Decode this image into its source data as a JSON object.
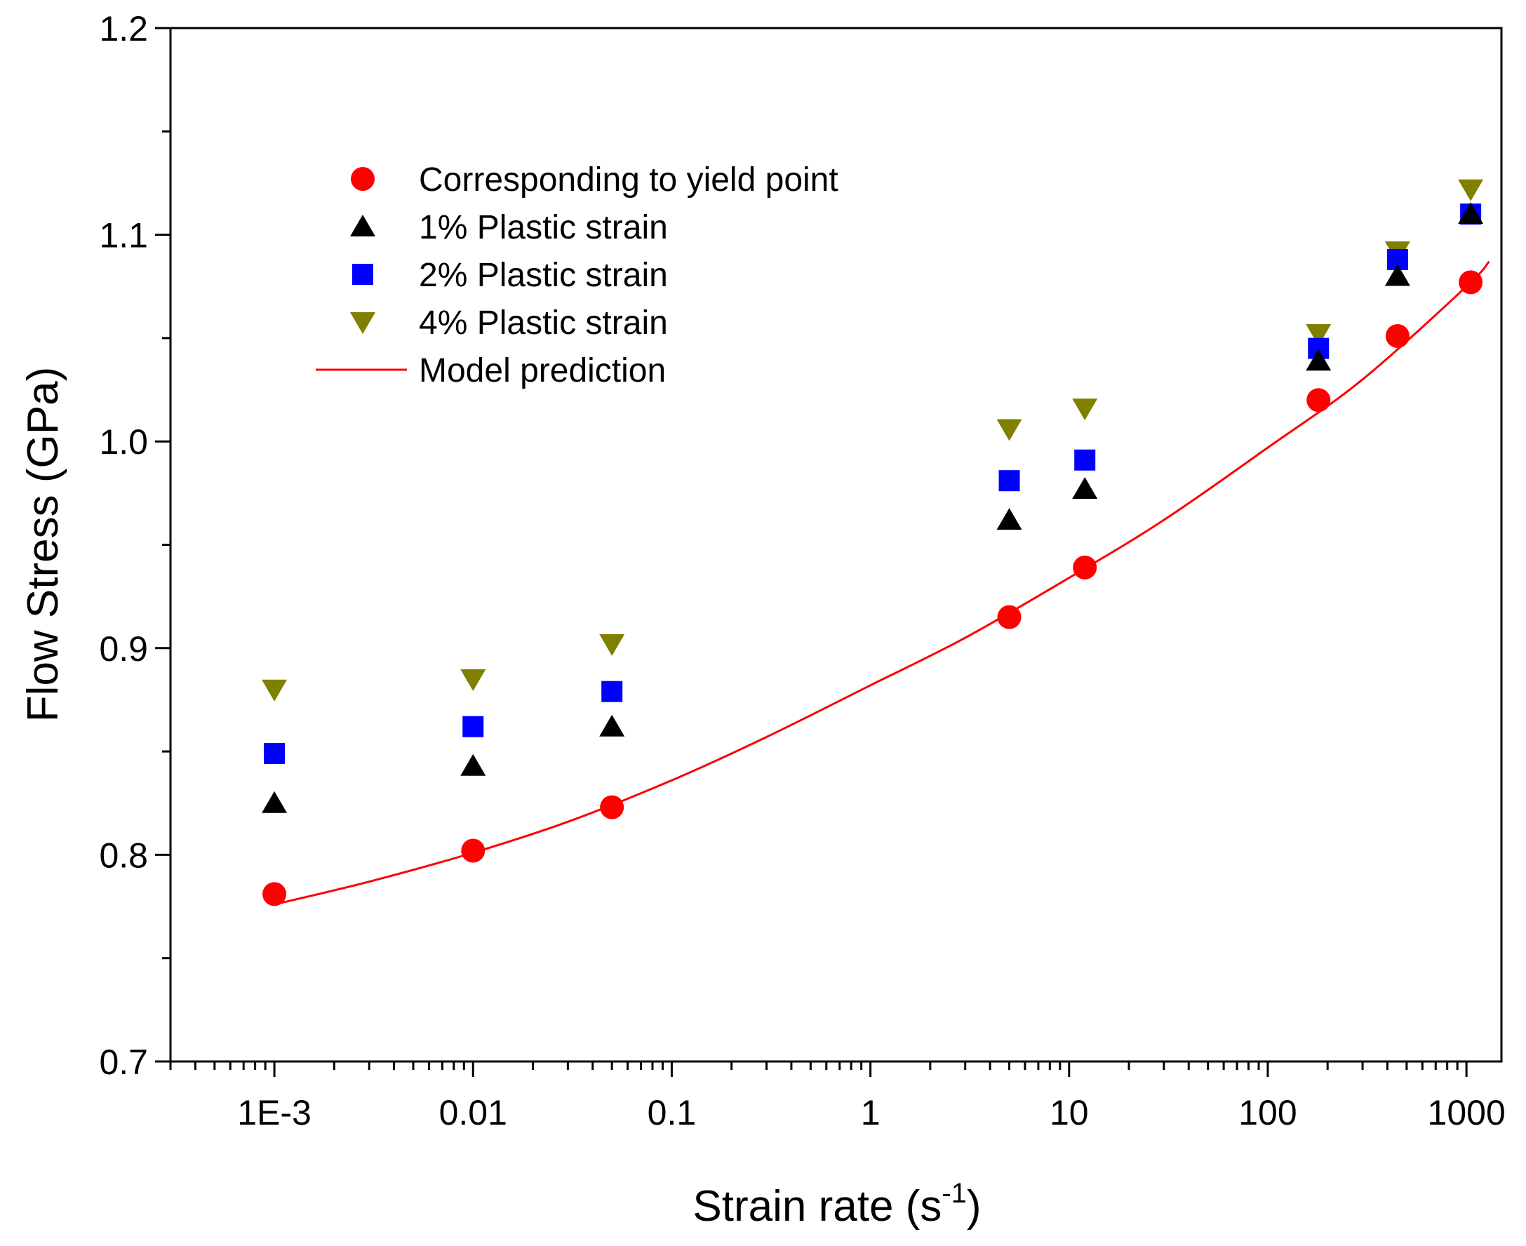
{
  "chart_data": {
    "type": "scatter",
    "title": "",
    "xlabel_main": "Strain rate (s",
    "xlabel_sup": "-1",
    "xlabel_close": ")",
    "ylabel": "Flow Stress (GPa)",
    "xscale": "log",
    "xlim": [
      0.0003,
      1500
    ],
    "ylim": [
      0.7,
      1.2
    ],
    "x_ticks": [
      {
        "value": 0.001,
        "label": "1E-3"
      },
      {
        "value": 0.01,
        "label": "0.01"
      },
      {
        "value": 0.1,
        "label": "0.1"
      },
      {
        "value": 1,
        "label": "1"
      },
      {
        "value": 10,
        "label": "10"
      },
      {
        "value": 100,
        "label": "100"
      },
      {
        "value": 1000,
        "label": "1000"
      }
    ],
    "y_ticks": [
      {
        "value": 0.7,
        "label": "0.7"
      },
      {
        "value": 0.8,
        "label": "0.8"
      },
      {
        "value": 0.9,
        "label": "0.9"
      },
      {
        "value": 1.0,
        "label": "1.0"
      },
      {
        "value": 1.1,
        "label": "1.1"
      },
      {
        "value": 1.2,
        "label": "1.2"
      }
    ],
    "y_minor_ticks": [
      0.75,
      0.85,
      0.95,
      1.05,
      1.15
    ],
    "grid": false,
    "legend_position": "top-left",
    "series": [
      {
        "name": "Corresponding to yield point",
        "marker": "circle",
        "color": "#ff0000",
        "x": [
          0.001,
          0.01,
          0.05,
          5,
          12,
          180,
          450,
          1050
        ],
        "y": [
          0.781,
          0.802,
          0.823,
          0.915,
          0.939,
          1.02,
          1.051,
          1.077
        ]
      },
      {
        "name": "1% Plastic strain",
        "marker": "triangle-up",
        "color": "#000000",
        "x": [
          0.001,
          0.01,
          0.05,
          5,
          12,
          180,
          450,
          1050
        ],
        "y": [
          0.825,
          0.843,
          0.862,
          0.962,
          0.977,
          1.039,
          1.08,
          1.11
        ]
      },
      {
        "name": "2% Plastic strain",
        "marker": "square",
        "color": "#0000ff",
        "x": [
          0.001,
          0.01,
          0.05,
          5,
          12,
          180,
          450,
          1050
        ],
        "y": [
          0.849,
          0.862,
          0.879,
          0.981,
          0.991,
          1.045,
          1.088,
          1.11
        ]
      },
      {
        "name": "4% Plastic strain",
        "marker": "triangle-down",
        "color": "#808000",
        "x": [
          0.001,
          0.01,
          0.05,
          5,
          12,
          180,
          450,
          1050
        ],
        "y": [
          0.88,
          0.885,
          0.902,
          1.006,
          1.016,
          1.052,
          1.092,
          1.122
        ]
      },
      {
        "name": "Model prediction",
        "marker": "line",
        "color": "#ff0000",
        "x": [
          0.001,
          0.003,
          0.01,
          0.03,
          0.1,
          0.3,
          1,
          3,
          10,
          30,
          100,
          300,
          1000,
          1300
        ],
        "y": [
          0.776,
          0.787,
          0.801,
          0.816,
          0.836,
          0.857,
          0.882,
          0.905,
          0.934,
          0.962,
          0.997,
          1.03,
          1.075,
          1.087
        ]
      }
    ]
  }
}
